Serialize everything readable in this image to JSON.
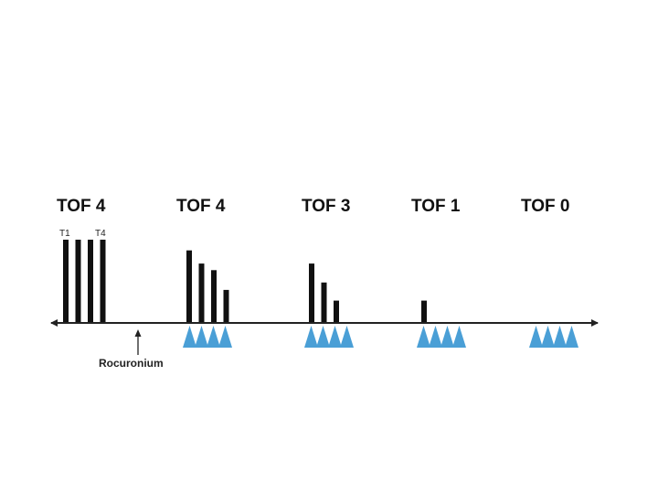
{
  "colors": {
    "bar": "#111111",
    "stimulus": "#4a9fd6",
    "axis": "#222222"
  },
  "twitch_labels": {
    "first": "T1",
    "last": "T4"
  },
  "drug": {
    "label": "Rocuronium",
    "icon": "arrow-up-icon"
  },
  "groups": [
    {
      "label": "TOF 4",
      "twitches": [
        1.0,
        1.0,
        1.0,
        1.0
      ],
      "stimuli": 0
    },
    {
      "label": "TOF 4",
      "twitches": [
        0.87,
        0.71,
        0.63,
        0.39
      ],
      "stimuli": 4
    },
    {
      "label": "TOF 3",
      "twitches": [
        0.71,
        0.48,
        0.26
      ],
      "stimuli": 4
    },
    {
      "label": "TOF 1",
      "twitches": [
        0.26
      ],
      "stimuli": 4
    },
    {
      "label": "TOF 0",
      "twitches": [],
      "stimuli": 4
    }
  ]
}
